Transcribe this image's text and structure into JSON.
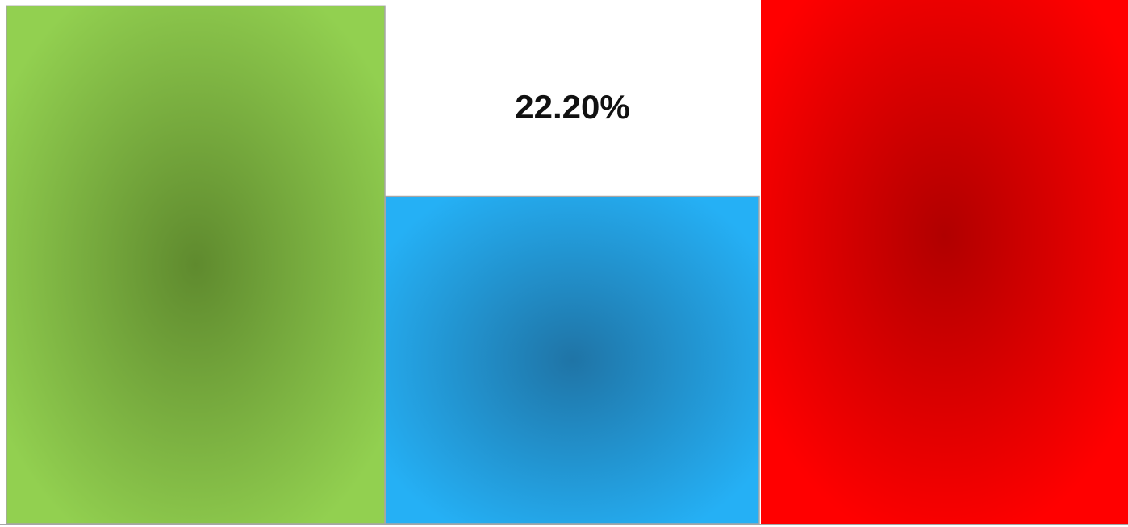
{
  "chart_data": {
    "type": "bar",
    "values": [
      35.1,
      22.2,
      35.5
    ],
    "value_labels": [
      null,
      "22.20%",
      null
    ],
    "colors": [
      "#92d050",
      "#22aaee",
      "#ff0000"
    ],
    "ylim": [
      0,
      35.5
    ]
  }
}
